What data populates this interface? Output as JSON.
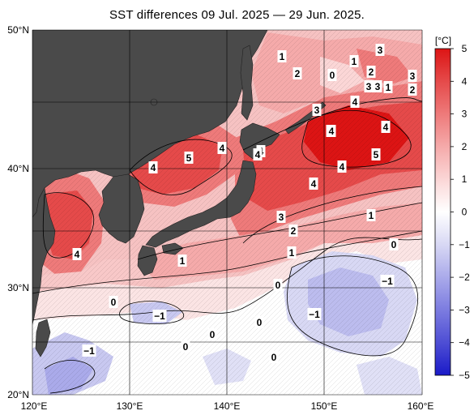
{
  "title": "SST differences 09 Jul. 2025 — 29 Jun. 2025.",
  "map": {
    "lon_range": [
      120,
      160
    ],
    "lat_range": [
      20,
      50
    ],
    "lat_ticks": [
      "20°N",
      "30°N",
      "40°N",
      "50°N"
    ],
    "lon_ticks": [
      "120°E",
      "130°E",
      "140°E",
      "150°E",
      "160°E"
    ],
    "land_color": "#4a4a4a",
    "grid_color": "#000000"
  },
  "colorbar": {
    "unit_label": "[°C]",
    "ticks": [
      "5",
      "4",
      "3",
      "2",
      "1",
      "0",
      "−1",
      "−2",
      "−3",
      "−4",
      "−5"
    ],
    "colors": [
      "#dc1414",
      "#e54a4a",
      "#ee7a7a",
      "#f5aaaa",
      "#fbd6d6",
      "#ffffff",
      "#d8d8f4",
      "#aaaaea",
      "#7c7ce0",
      "#4e4ed4",
      "#1a1ac8"
    ]
  },
  "contour_labels": [
    {
      "text": "1"
    },
    {
      "text": "2"
    },
    {
      "text": "3"
    },
    {
      "text": "0"
    },
    {
      "text": "1"
    },
    {
      "text": "2"
    },
    {
      "text": "3"
    },
    {
      "text": "3"
    },
    {
      "text": "1"
    },
    {
      "text": "2"
    },
    {
      "text": "3"
    },
    {
      "text": "4"
    },
    {
      "text": "3"
    },
    {
      "text": "4"
    },
    {
      "text": "4"
    },
    {
      "text": "4"
    },
    {
      "text": "5"
    },
    {
      "text": "4"
    },
    {
      "text": "4"
    },
    {
      "text": "4"
    },
    {
      "text": "4"
    },
    {
      "text": "5"
    },
    {
      "text": "4"
    },
    {
      "text": "4"
    },
    {
      "text": "3"
    },
    {
      "text": "2"
    },
    {
      "text": "1"
    },
    {
      "text": "1"
    },
    {
      "text": "0"
    },
    {
      "text": "4"
    },
    {
      "text": "1"
    },
    {
      "text": "−1"
    },
    {
      "text": "0"
    },
    {
      "text": "−1"
    },
    {
      "text": "0"
    },
    {
      "text": "−1"
    },
    {
      "text": "0"
    },
    {
      "text": "0"
    },
    {
      "text": "0"
    },
    {
      "text": "−1"
    },
    {
      "text": "0"
    }
  ]
}
